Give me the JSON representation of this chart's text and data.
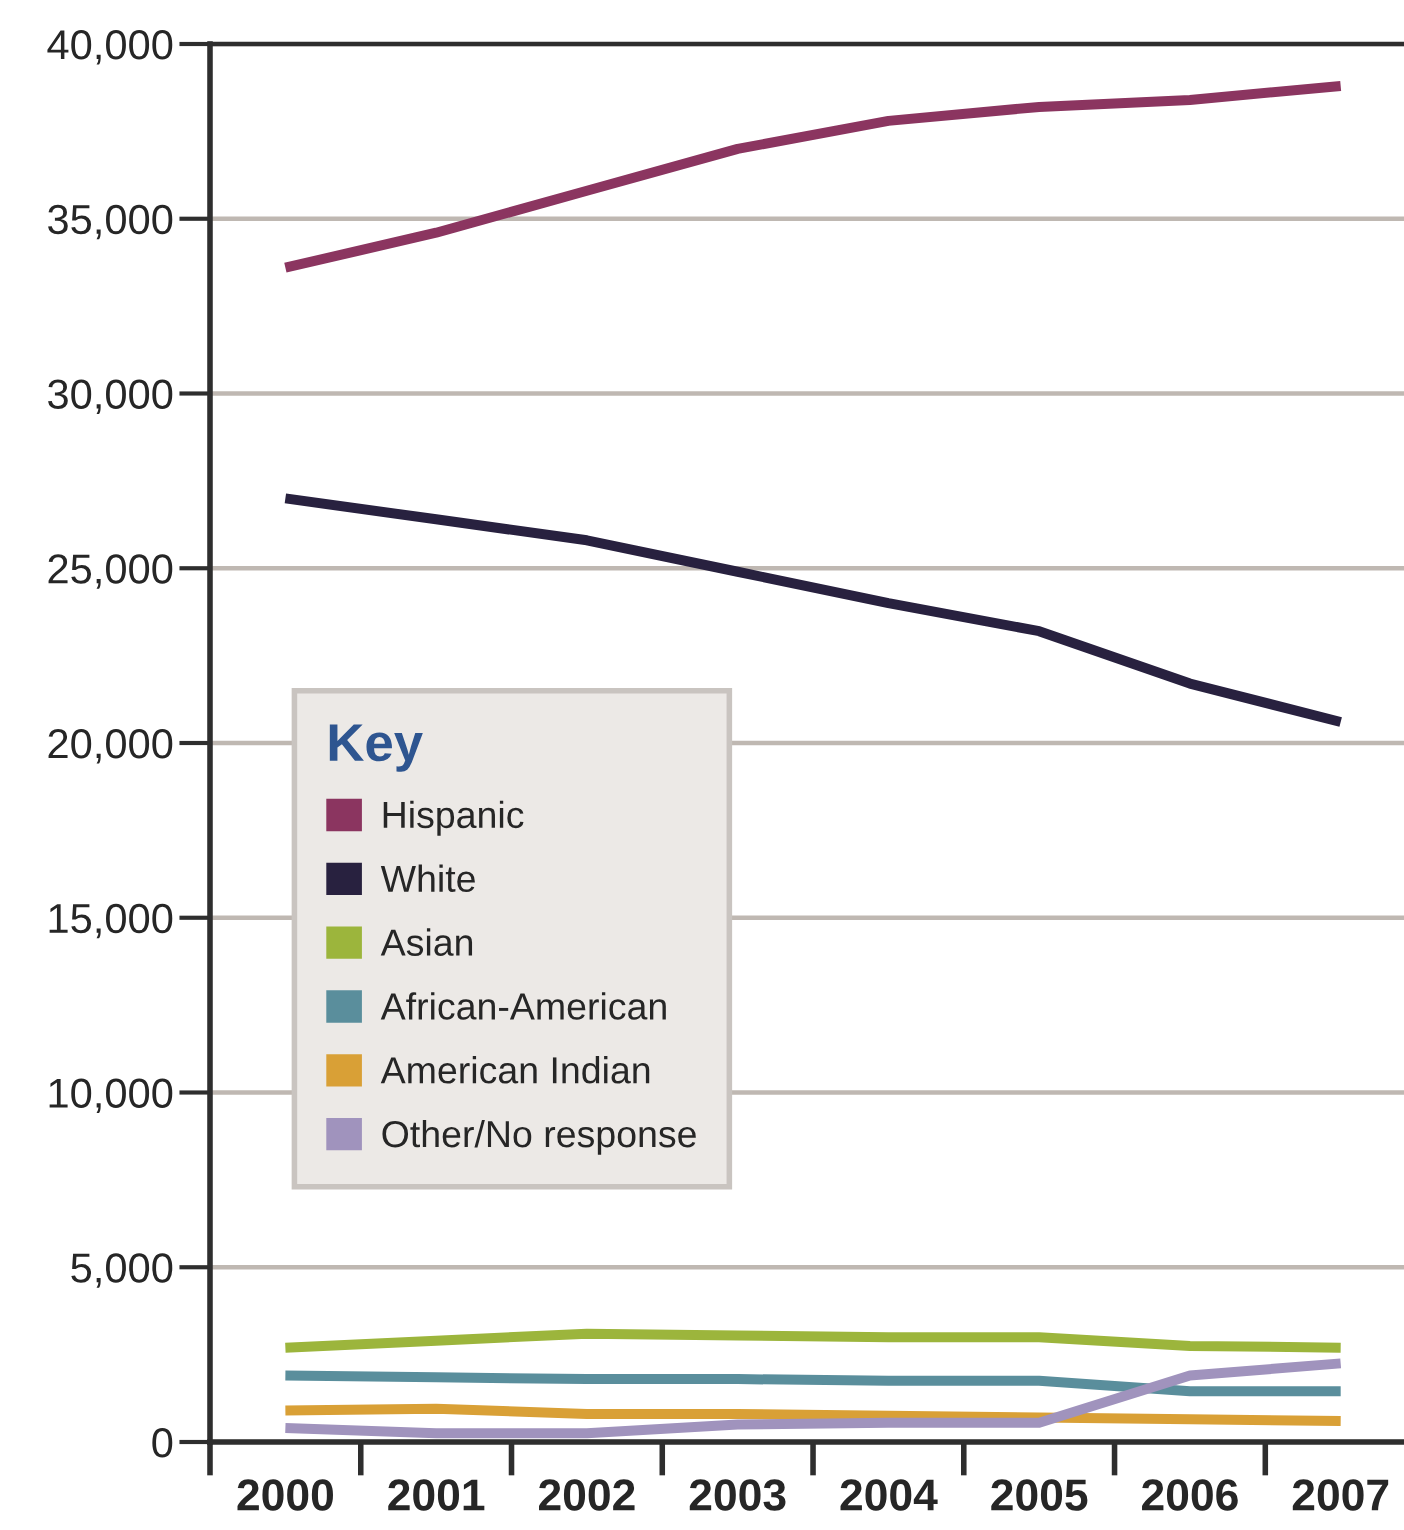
{
  "chart_data": {
    "type": "line",
    "categories": [
      "2000",
      "2001",
      "2002",
      "2003",
      "2004",
      "2005",
      "2006",
      "2007"
    ],
    "ylim": [
      0,
      40000
    ],
    "yticks": [
      0,
      {
        "value": 5000,
        "label": "5,000"
      },
      {
        "value": 10000,
        "label": "10,000"
      },
      {
        "value": 15000,
        "label": "15,000"
      },
      {
        "value": 20000,
        "label": "20,000"
      },
      {
        "value": 25000,
        "label": "25,000"
      },
      {
        "value": 30000,
        "label": "30,000"
      },
      {
        "value": 35000,
        "label": "35,000"
      },
      {
        "value": 40000,
        "label": "40,000"
      }
    ],
    "grid": "y",
    "legend": "left",
    "legend_title": "Key",
    "series": [
      {
        "name": "Hispanic",
        "color": "#8b3560",
        "values": [
          33600,
          34600,
          35800,
          37000,
          37800,
          38200,
          38400,
          38800
        ]
      },
      {
        "name": "White",
        "color": "#28213f",
        "values": [
          27000,
          26400,
          25800,
          24900,
          24000,
          23200,
          21700,
          20600
        ]
      },
      {
        "name": "Asian",
        "color": "#9cb53c",
        "values": [
          2700,
          2900,
          3100,
          3050,
          3000,
          3000,
          2750,
          2700
        ]
      },
      {
        "name": "African-American",
        "color": "#5a8e9c",
        "values": [
          1900,
          1850,
          1800,
          1800,
          1750,
          1750,
          1450,
          1450
        ]
      },
      {
        "name": "American Indian",
        "color": "#d9a036",
        "values": [
          900,
          950,
          800,
          800,
          750,
          700,
          650,
          600
        ]
      },
      {
        "name": "Other/No response",
        "color": "#a093bd",
        "values": [
          400,
          250,
          250,
          500,
          550,
          550,
          1900,
          2250
        ]
      }
    ]
  }
}
